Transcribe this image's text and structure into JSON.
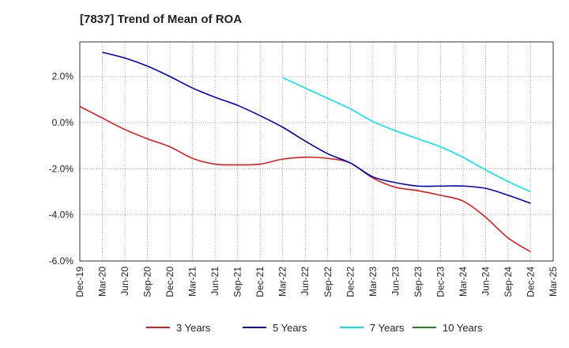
{
  "chart_data": {
    "type": "line",
    "title": "[7837]  Trend of Mean of ROA",
    "xlabel": "",
    "ylabel": "",
    "ylim": [
      -6.0,
      3.5
    ],
    "yticks": [
      2.0,
      0.0,
      -2.0,
      -4.0,
      -6.0
    ],
    "ytick_labels": [
      "2.0%",
      "0.0%",
      "-2.0%",
      "-4.0%",
      "-6.0%"
    ],
    "x_labels": [
      "Dec-19",
      "Mar-20",
      "Jun-20",
      "Sep-20",
      "Dec-20",
      "Mar-21",
      "Jun-21",
      "Sep-21",
      "Dec-21",
      "Mar-22",
      "Jun-22",
      "Sep-22",
      "Dec-22",
      "Mar-23",
      "Jun-23",
      "Sep-23",
      "Dec-23",
      "Mar-24",
      "Jun-24",
      "Sep-24",
      "Dec-24",
      "Mar-25"
    ],
    "grid": true,
    "legend_position": "bottom",
    "series": [
      {
        "name": "3 Years",
        "color": "#e41a1c",
        "x": [
          0,
          1,
          2,
          3,
          4,
          5,
          6,
          7,
          8,
          9,
          10,
          11,
          12,
          13,
          14,
          15,
          16,
          17,
          18,
          19,
          20
        ],
        "values": [
          0.7,
          0.2,
          -0.3,
          -0.7,
          -1.05,
          -1.55,
          -1.8,
          -1.83,
          -1.8,
          -1.58,
          -1.5,
          -1.55,
          -1.75,
          -2.4,
          -2.8,
          -2.95,
          -3.15,
          -3.4,
          -4.1,
          -5.0,
          -5.6
        ]
      },
      {
        "name": "5 Years",
        "color": "#0000c0",
        "x": [
          1,
          2,
          3,
          4,
          5,
          6,
          7,
          8,
          9,
          10,
          11,
          12,
          13,
          14,
          15,
          16,
          17,
          18,
          19,
          20
        ],
        "values": [
          3.05,
          2.8,
          2.45,
          2.0,
          1.5,
          1.1,
          0.75,
          0.3,
          -0.2,
          -0.8,
          -1.35,
          -1.75,
          -2.35,
          -2.6,
          -2.75,
          -2.75,
          -2.75,
          -2.85,
          -3.15,
          -3.5
        ]
      },
      {
        "name": "7 Years",
        "color": "#00e5ee",
        "x": [
          9,
          10,
          11,
          12,
          13,
          14,
          15,
          16,
          17,
          18,
          19,
          20
        ],
        "values": [
          1.95,
          1.5,
          1.05,
          0.6,
          0.05,
          -0.35,
          -0.7,
          -1.05,
          -1.5,
          -2.05,
          -2.55,
          -3.0
        ]
      },
      {
        "name": "10 Years",
        "color": "#1a8a1a",
        "x": [],
        "values": []
      }
    ]
  }
}
